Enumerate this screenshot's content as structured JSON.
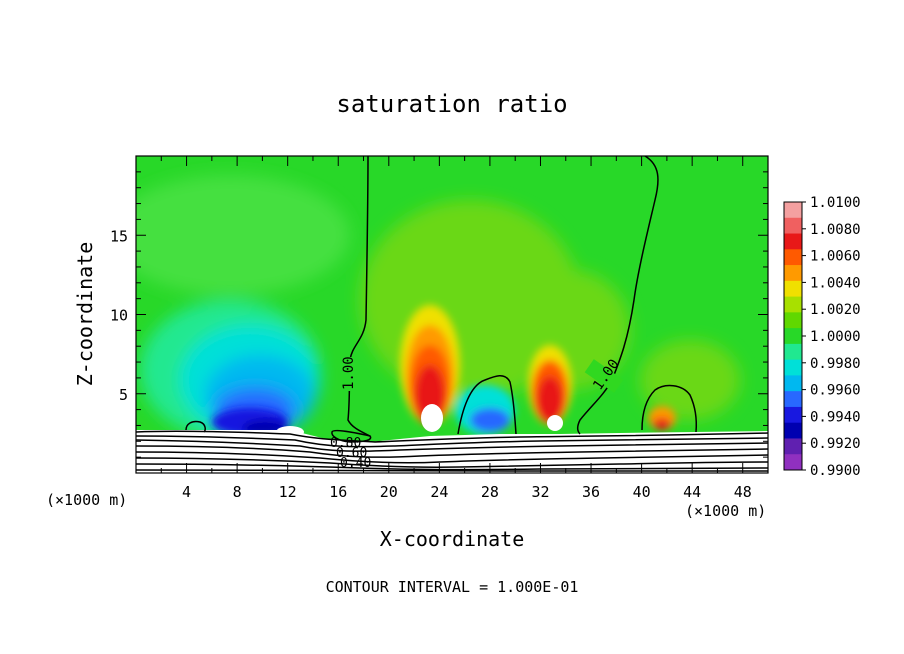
{
  "chart_data": {
    "type": "heatmap",
    "title": "saturation ratio",
    "xlabel": "X-coordinate",
    "ylabel": "Z-coordinate",
    "x_unit_left": "(×1000 m)",
    "x_unit_right": "(×1000 m)",
    "xlim": [
      0,
      50
    ],
    "ylim": [
      0,
      20
    ],
    "xticks": [
      4,
      8,
      12,
      16,
      20,
      24,
      28,
      32,
      36,
      40,
      44,
      48
    ],
    "xtick_labels": [
      "4",
      "8",
      "12",
      "16",
      "20",
      "24",
      "28",
      "32",
      "36",
      "40",
      "44",
      "48"
    ],
    "yticks": [
      5,
      10,
      15
    ],
    "ytick_labels": [
      "5",
      "10",
      "15"
    ],
    "footer": "CONTOUR INTERVAL = 1.000E-01",
    "colorbar": {
      "levels": [
        "1.0100",
        "1.0080",
        "1.0060",
        "1.0040",
        "1.0020",
        "1.0000",
        "0.9980",
        "0.9960",
        "0.9940",
        "0.9920",
        "0.9900"
      ],
      "colors": [
        "#f4a0a0",
        "#f06060",
        "#e81818",
        "#ff5a00",
        "#ff9a00",
        "#f0e000",
        "#a8e000",
        "#60d800",
        "#28d828",
        "#20e890",
        "#00e0d8",
        "#00b8f0",
        "#2868ff",
        "#1818e0",
        "#0000b0",
        "#6020b0",
        "#9030c0"
      ]
    },
    "contour_labels": [
      "1.00",
      "1.00",
      "0.80",
      "0.60",
      "0.40"
    ]
  }
}
